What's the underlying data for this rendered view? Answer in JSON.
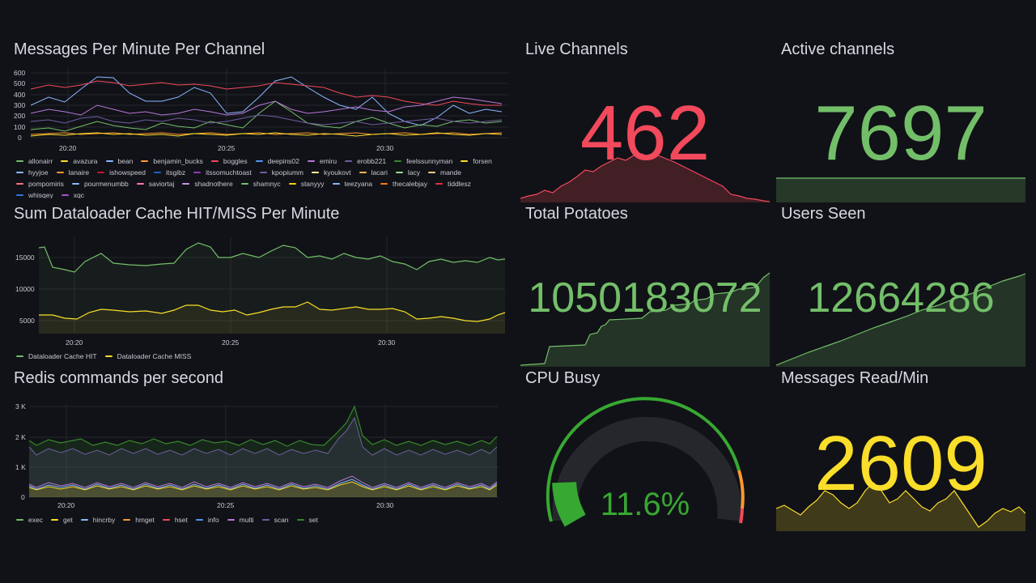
{
  "dashboard": {
    "panels": {
      "messages": {
        "title": "Messages Per Minute Per Channel",
        "y_ticks": [
          "600",
          "500",
          "400",
          "300",
          "200",
          "100",
          "0"
        ],
        "x_ticks": [
          "20:20",
          "20:25",
          "20:30"
        ],
        "legend": [
          {
            "name": "allonairr",
            "color": "#73bf69"
          },
          {
            "name": "avazura",
            "color": "#fade2a"
          },
          {
            "name": "bean",
            "color": "#8ab8ff"
          },
          {
            "name": "benjamin_bucks",
            "color": "#ff9830"
          },
          {
            "name": "boggles",
            "color": "#f2495c"
          },
          {
            "name": "deepins02",
            "color": "#5794f2"
          },
          {
            "name": "emiru",
            "color": "#b877d9"
          },
          {
            "name": "erobb221",
            "color": "#705da0"
          },
          {
            "name": "feelssunnyman",
            "color": "#37872d"
          },
          {
            "name": "forsen",
            "color": "#fade2a"
          },
          {
            "name": "hyyjoe",
            "color": "#8ab8ff"
          },
          {
            "name": "lanaire",
            "color": "#ff9830"
          },
          {
            "name": "ishowspeed",
            "color": "#c4162a"
          },
          {
            "name": "itsgibz",
            "color": "#1f60c4"
          },
          {
            "name": "itssomuchtoast",
            "color": "#8f3bb8"
          },
          {
            "name": "kpopiumm",
            "color": "#705da0"
          },
          {
            "name": "kyoukovt",
            "color": "#fff899"
          },
          {
            "name": "lacari",
            "color": "#ffb357"
          },
          {
            "name": "lacy",
            "color": "#96d98d"
          },
          {
            "name": "mande",
            "color": "#ffcb7d"
          },
          {
            "name": "pompomiris",
            "color": "#ff7383"
          },
          {
            "name": "pourmenumbb",
            "color": "#8ab8ff"
          },
          {
            "name": "saviortaj",
            "color": "#ff73b4"
          },
          {
            "name": "shadnothere",
            "color": "#ca95e5"
          },
          {
            "name": "shamnyc",
            "color": "#73bf69"
          },
          {
            "name": "stanyyy",
            "color": "#f2cc0c"
          },
          {
            "name": "teezyana",
            "color": "#8ab8ff"
          },
          {
            "name": "thecalebjay",
            "color": "#ff780a"
          },
          {
            "name": "tiddlesz",
            "color": "#e02f44"
          },
          {
            "name": "whisqey",
            "color": "#3274d9"
          },
          {
            "name": "xqc",
            "color": "#a352cc"
          }
        ]
      },
      "cache": {
        "title": "Sum Dataloader Cache HIT/MISS Per Minute",
        "y_ticks": [
          "15000",
          "10000",
          "5000"
        ],
        "x_ticks": [
          "20:20",
          "20:25",
          "20:30"
        ],
        "legend": [
          {
            "name": "Dataloader Cache HIT",
            "color": "#73bf69"
          },
          {
            "name": "Dataloader Cache MISS",
            "color": "#fade2a"
          }
        ]
      },
      "redis": {
        "title": "Redis commands per second",
        "y_ticks": [
          "3 K",
          "2 K",
          "1 K",
          "0"
        ],
        "x_ticks": [
          "20:20",
          "20:25",
          "20:30"
        ],
        "legend": [
          {
            "name": "exec",
            "color": "#73bf69"
          },
          {
            "name": "get",
            "color": "#fade2a"
          },
          {
            "name": "hincrby",
            "color": "#8ab8ff"
          },
          {
            "name": "hmget",
            "color": "#ff9830"
          },
          {
            "name": "hset",
            "color": "#f2495c"
          },
          {
            "name": "info",
            "color": "#5794f2"
          },
          {
            "name": "multi",
            "color": "#b877d9"
          },
          {
            "name": "scan",
            "color": "#705da0"
          },
          {
            "name": "set",
            "color": "#37872d"
          }
        ]
      },
      "live_channels": {
        "title": "Live Channels",
        "value": "462",
        "color": "#f2495c"
      },
      "active_channels": {
        "title": "Active channels",
        "value": "7697",
        "color": "#73bf69"
      },
      "total_potatoes": {
        "title": "Total Potatoes",
        "value": "1050183072",
        "color": "#73bf69"
      },
      "users_seen": {
        "title": "Users Seen",
        "value": "12664286",
        "color": "#73bf69"
      },
      "cpu_busy": {
        "title": "CPU Busy",
        "value": "11.6%",
        "value_fraction": 0.116,
        "color": "#37a832"
      },
      "messages_read": {
        "title": "Messages Read/Min",
        "value": "2609",
        "color": "#fade2a"
      }
    }
  }
}
